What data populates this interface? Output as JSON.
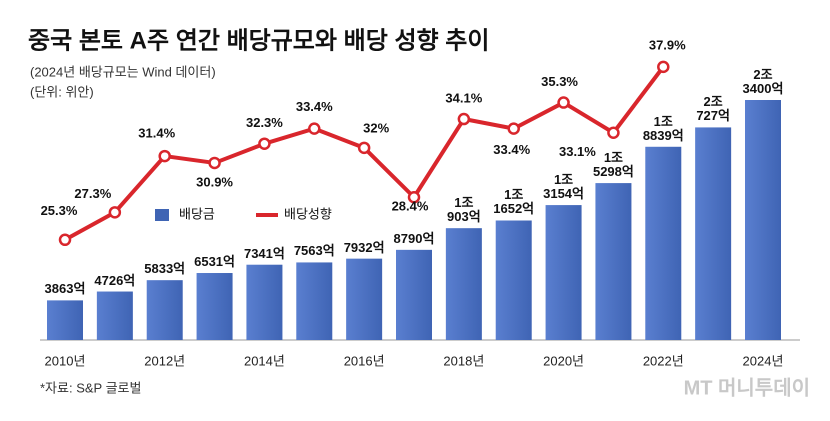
{
  "chart_data": {
    "type": "bar-line",
    "title": "중국 본토 A주 연간 배당규모와 배당 성향 추이",
    "subtitle": "(2024년 배당규모는 Wind 데이터)",
    "unit": "(단위: 위안)",
    "source": "*자료: S&P 글로벌",
    "watermark": "MT 머니투데이",
    "categories": [
      "2010년",
      null,
      "2012년",
      null,
      "2014년",
      null,
      "2016년",
      null,
      "2018년",
      null,
      "2020년",
      null,
      "2022년",
      null,
      "2024년"
    ],
    "ylim": [
      0,
      27300
    ],
    "y2lim": [
      18,
      38.4
    ],
    "legend": "upper left",
    "series": [
      {
        "name": "배당금",
        "type": "bar",
        "color": "#3f64b4",
        "values": [
          3863,
          4726,
          5833,
          6531,
          7341,
          7563,
          7932,
          8790,
          10903,
          11652,
          13154,
          15298,
          18839,
          20727,
          23400
        ],
        "value_labels": [
          "3863억",
          "4726억",
          "5833억",
          "6531억",
          "7341억",
          "7563억",
          "7932억",
          "8790억",
          "1조\n903억",
          "1조\n1652억",
          "1조\n3154억",
          "1조\n5298억",
          "1조\n8839억",
          "2조\n727억",
          "2조\n3400억"
        ]
      },
      {
        "name": "배당성향",
        "type": "line",
        "axis": "y2",
        "color": "#d9262c",
        "values": [
          25.3,
          27.3,
          31.4,
          30.9,
          32.3,
          33.4,
          32,
          28.4,
          34.1,
          33.4,
          35.3,
          33.1,
          37.9,
          null,
          null
        ],
        "value_labels": [
          "25.3%",
          "27.3%",
          "31.4%",
          "30.9%",
          "32.3%",
          "33.4%",
          "32%",
          "28.4%",
          "34.1%",
          "33.4%",
          "35.3%",
          "33.1%",
          "37.9%",
          null,
          null
        ]
      }
    ]
  }
}
